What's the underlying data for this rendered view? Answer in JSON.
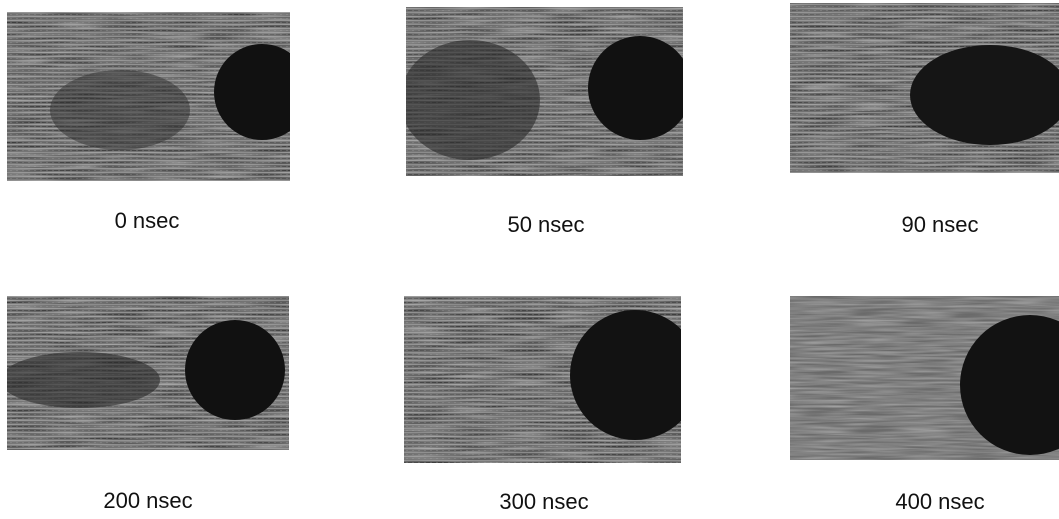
{
  "panels": [
    {
      "caption": "0 nsec"
    },
    {
      "caption": "50 nsec"
    },
    {
      "caption": "90 nsec"
    },
    {
      "caption": "200 nsec"
    },
    {
      "caption": "300 nsec"
    },
    {
      "caption": "400 nsec"
    }
  ]
}
